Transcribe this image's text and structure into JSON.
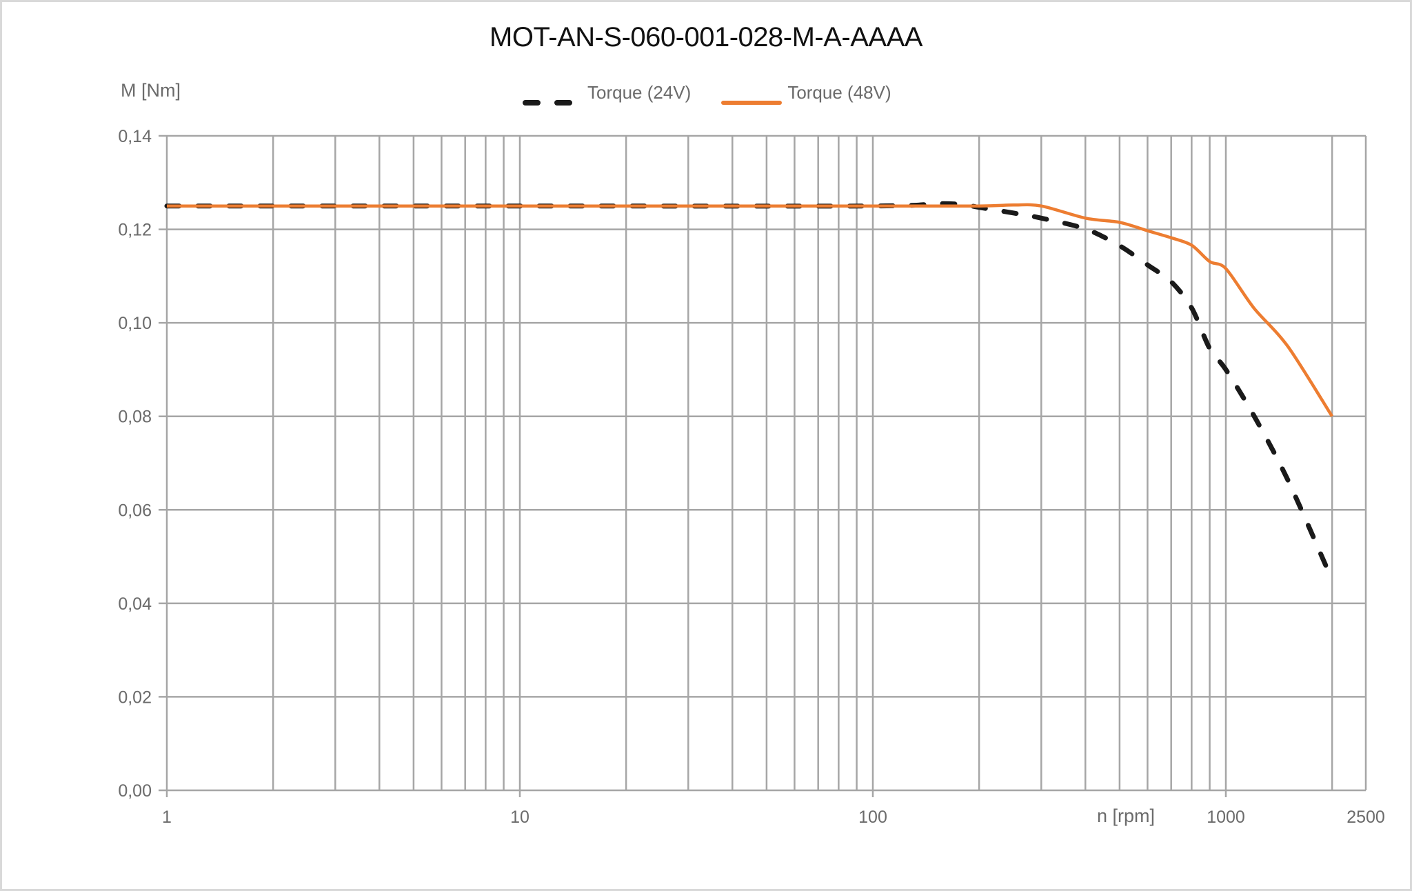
{
  "chart_data": {
    "type": "line",
    "title": "MOT-AN-S-060-001-028-M-A-AAAA",
    "xlabel": "n [rpm]",
    "ylabel": "M [Nm]",
    "x_scale": "log",
    "xlim": [
      1,
      2500
    ],
    "ylim": [
      0,
      0.14
    ],
    "grid": true,
    "legend_position": "top",
    "x_tick_labels": [
      "1",
      "10",
      "100",
      "1000",
      "2500"
    ],
    "x_tick_values": [
      1,
      10,
      100,
      1000,
      2500
    ],
    "y_tick_labels": [
      "0,00",
      "0,02",
      "0,04",
      "0,06",
      "0,08",
      "0,10",
      "0,12",
      "0,14"
    ],
    "y_tick_values": [
      0,
      0.02,
      0.04,
      0.06,
      0.08,
      0.1,
      0.12,
      0.14
    ],
    "series": [
      {
        "name": "Torque (24V)",
        "color": "#1a1a1a",
        "style": "dashed",
        "x": [
          1,
          10,
          100,
          150,
          180,
          200,
          250,
          300,
          400,
          500,
          600,
          700,
          800,
          900,
          1000,
          1200,
          1500,
          2000
        ],
        "values": [
          0.125,
          0.125,
          0.125,
          0.1255,
          0.1253,
          0.1247,
          0.1235,
          0.1224,
          0.1201,
          0.1165,
          0.1124,
          0.1088,
          0.1032,
          0.0945,
          0.09,
          0.0802,
          0.0663,
          0.045
        ]
      },
      {
        "name": "Torque (48V)",
        "color": "#ED7D31",
        "style": "solid",
        "x": [
          1,
          10,
          100,
          200,
          250,
          300,
          400,
          500,
          600,
          700,
          800,
          900,
          1000,
          1200,
          1500,
          2000
        ],
        "values": [
          0.125,
          0.125,
          0.125,
          0.125,
          0.1252,
          0.125,
          0.1224,
          0.1215,
          0.1197,
          0.1182,
          0.1166,
          0.1131,
          0.1116,
          0.1032,
          0.0949,
          0.08
        ]
      }
    ]
  },
  "header": {
    "title": "MOT-AN-S-060-001-028-M-A-AAAA"
  },
  "axes": {
    "ylabel": "M [Nm]",
    "xlabel": "n [rpm]"
  },
  "legend": {
    "items": [
      {
        "label": "Torque (24V)",
        "color": "#1a1a1a",
        "style": "dashed"
      },
      {
        "label": "Torque (48V)",
        "color": "#ED7D31",
        "style": "solid"
      }
    ]
  },
  "colors": {
    "grid": "#a6a6a6",
    "axis_text": "#6b6b6b",
    "title_text": "#111111",
    "frame": "#d9d9d9"
  }
}
